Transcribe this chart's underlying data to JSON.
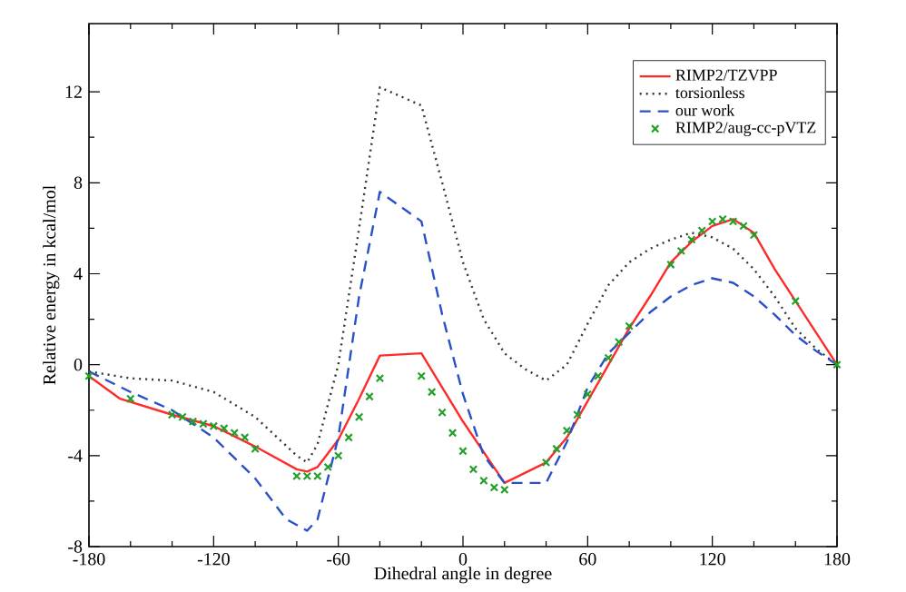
{
  "chart_data": {
    "type": "line",
    "xlabel": "Dihedral angle in degree",
    "ylabel": "Relative energy in kcal/mol",
    "xlim": [
      -180,
      180
    ],
    "ylim": [
      -8,
      15
    ],
    "xticks": [
      -180,
      -120,
      -60,
      0,
      60,
      120,
      180
    ],
    "yticks": [
      -8,
      -4,
      0,
      4,
      8,
      12
    ],
    "legend": "top right",
    "series": [
      {
        "name": "RIMP2/TZVPP",
        "line_style": "solid",
        "color": "#ff2a2a",
        "x": [
          -180,
          -165,
          -140,
          -120,
          -100,
          -80,
          -75,
          -70,
          -60,
          -50,
          -40,
          -20,
          0,
          20,
          40,
          50,
          60,
          70,
          80,
          90,
          100,
          110,
          120,
          130,
          140,
          150,
          160,
          170,
          180
        ],
        "values": [
          -0.5,
          -1.5,
          -2.2,
          -2.7,
          -3.6,
          -4.6,
          -4.7,
          -4.5,
          -3.3,
          -1.5,
          0.4,
          0.5,
          -2.5,
          -5.2,
          -4.3,
          -3.2,
          -1.6,
          0,
          1.6,
          3.0,
          4.5,
          5.4,
          6.1,
          6.4,
          5.8,
          4.2,
          2.8,
          1.4,
          0
        ]
      },
      {
        "name": "torsionless",
        "line_style": "dotted",
        "color": "#333333",
        "x": [
          -180,
          -160,
          -140,
          -120,
          -100,
          -80,
          -75,
          -70,
          -60,
          -50,
          -40,
          -20,
          -10,
          0,
          10,
          20,
          30,
          40,
          50,
          60,
          70,
          80,
          90,
          100,
          110,
          120,
          130,
          140,
          150,
          160,
          170,
          180
        ],
        "values": [
          -0.3,
          -0.6,
          -0.7,
          -1.2,
          -2.3,
          -4.0,
          -4.3,
          -3.5,
          0,
          6,
          12.2,
          11.4,
          8,
          4.5,
          2,
          0.5,
          -0.2,
          -0.7,
          0,
          1.8,
          3.5,
          4.5,
          5.1,
          5.5,
          5.8,
          5.6,
          5.1,
          4.2,
          3.0,
          1.6,
          0.7,
          0
        ]
      },
      {
        "name": "our work",
        "line_style": "dashed",
        "color": "#2850c8",
        "x": [
          -180,
          -160,
          -140,
          -120,
          -100,
          -85,
          -75,
          -70,
          -60,
          -50,
          -40,
          -20,
          -10,
          0,
          10,
          20,
          30,
          40,
          50,
          60,
          70,
          80,
          90,
          100,
          110,
          120,
          130,
          140,
          150,
          160,
          170,
          180
        ],
        "values": [
          -0.3,
          -1.2,
          -2.0,
          -3.2,
          -5.0,
          -6.8,
          -7.3,
          -6.8,
          -3.2,
          3,
          7.6,
          6.3,
          2.2,
          -1.3,
          -4.0,
          -5.2,
          -5.2,
          -5.2,
          -3.4,
          -1.0,
          0.5,
          1.4,
          2.3,
          3.0,
          3.5,
          3.8,
          3.6,
          3.0,
          2.2,
          1.3,
          0.6,
          0
        ]
      },
      {
        "name": "RIMP2/aug-cc-pVTZ",
        "type": "scatter",
        "marker": "cross",
        "color": "#22a02a",
        "x": [
          -180,
          -160,
          -140,
          -135,
          -130,
          -125,
          -120,
          -115,
          -110,
          -105,
          -100,
          -80,
          -75,
          -70,
          -65,
          -60,
          -55,
          -50,
          -45,
          -40,
          -20,
          -15,
          -10,
          -5,
          0,
          5,
          10,
          15,
          20,
          40,
          45,
          50,
          55,
          60,
          65,
          70,
          75,
          80,
          100,
          105,
          110,
          115,
          120,
          125,
          130,
          135,
          140,
          160,
          180
        ],
        "values": [
          -0.5,
          -1.5,
          -2.2,
          -2.3,
          -2.5,
          -2.6,
          -2.7,
          -2.8,
          -3.0,
          -3.2,
          -3.7,
          -4.9,
          -4.9,
          -4.9,
          -4.5,
          -4.0,
          -3.2,
          -2.3,
          -1.4,
          -0.6,
          -0.5,
          -1.2,
          -2.1,
          -3.0,
          -3.8,
          -4.6,
          -5.1,
          -5.4,
          -5.5,
          -4.3,
          -3.7,
          -2.9,
          -2.2,
          -1.3,
          -0.5,
          0.3,
          1.0,
          1.7,
          4.4,
          5.0,
          5.5,
          5.9,
          6.3,
          6.4,
          6.3,
          6.1,
          5.7,
          2.8,
          0
        ]
      }
    ]
  }
}
